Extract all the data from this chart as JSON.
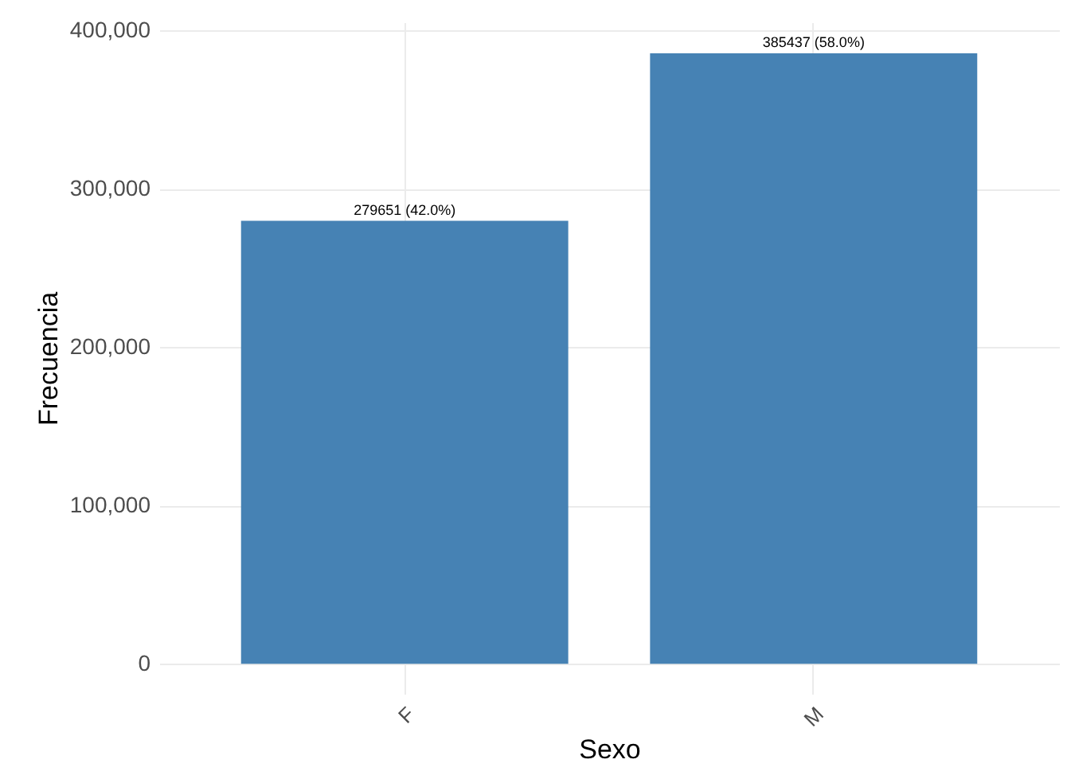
{
  "chart_data": {
    "type": "bar",
    "xlabel": "Sexo",
    "ylabel": "Frecuencia",
    "categories": [
      "F",
      "M"
    ],
    "values": [
      279651,
      385437
    ],
    "value_labels": [
      "279651 (42.0%)",
      "385437 (58.0%)"
    ],
    "color": "#4682b4",
    "ylim": [
      -19000,
      405000
    ],
    "yticks": [
      0,
      {
        "value": 100000,
        "label": "100,000"
      },
      {
        "value": 200000,
        "label": "200,000"
      },
      {
        "value": 300000,
        "label": "300,000"
      },
      {
        "value": 400000,
        "label": "400,000"
      }
    ],
    "grid": true
  }
}
